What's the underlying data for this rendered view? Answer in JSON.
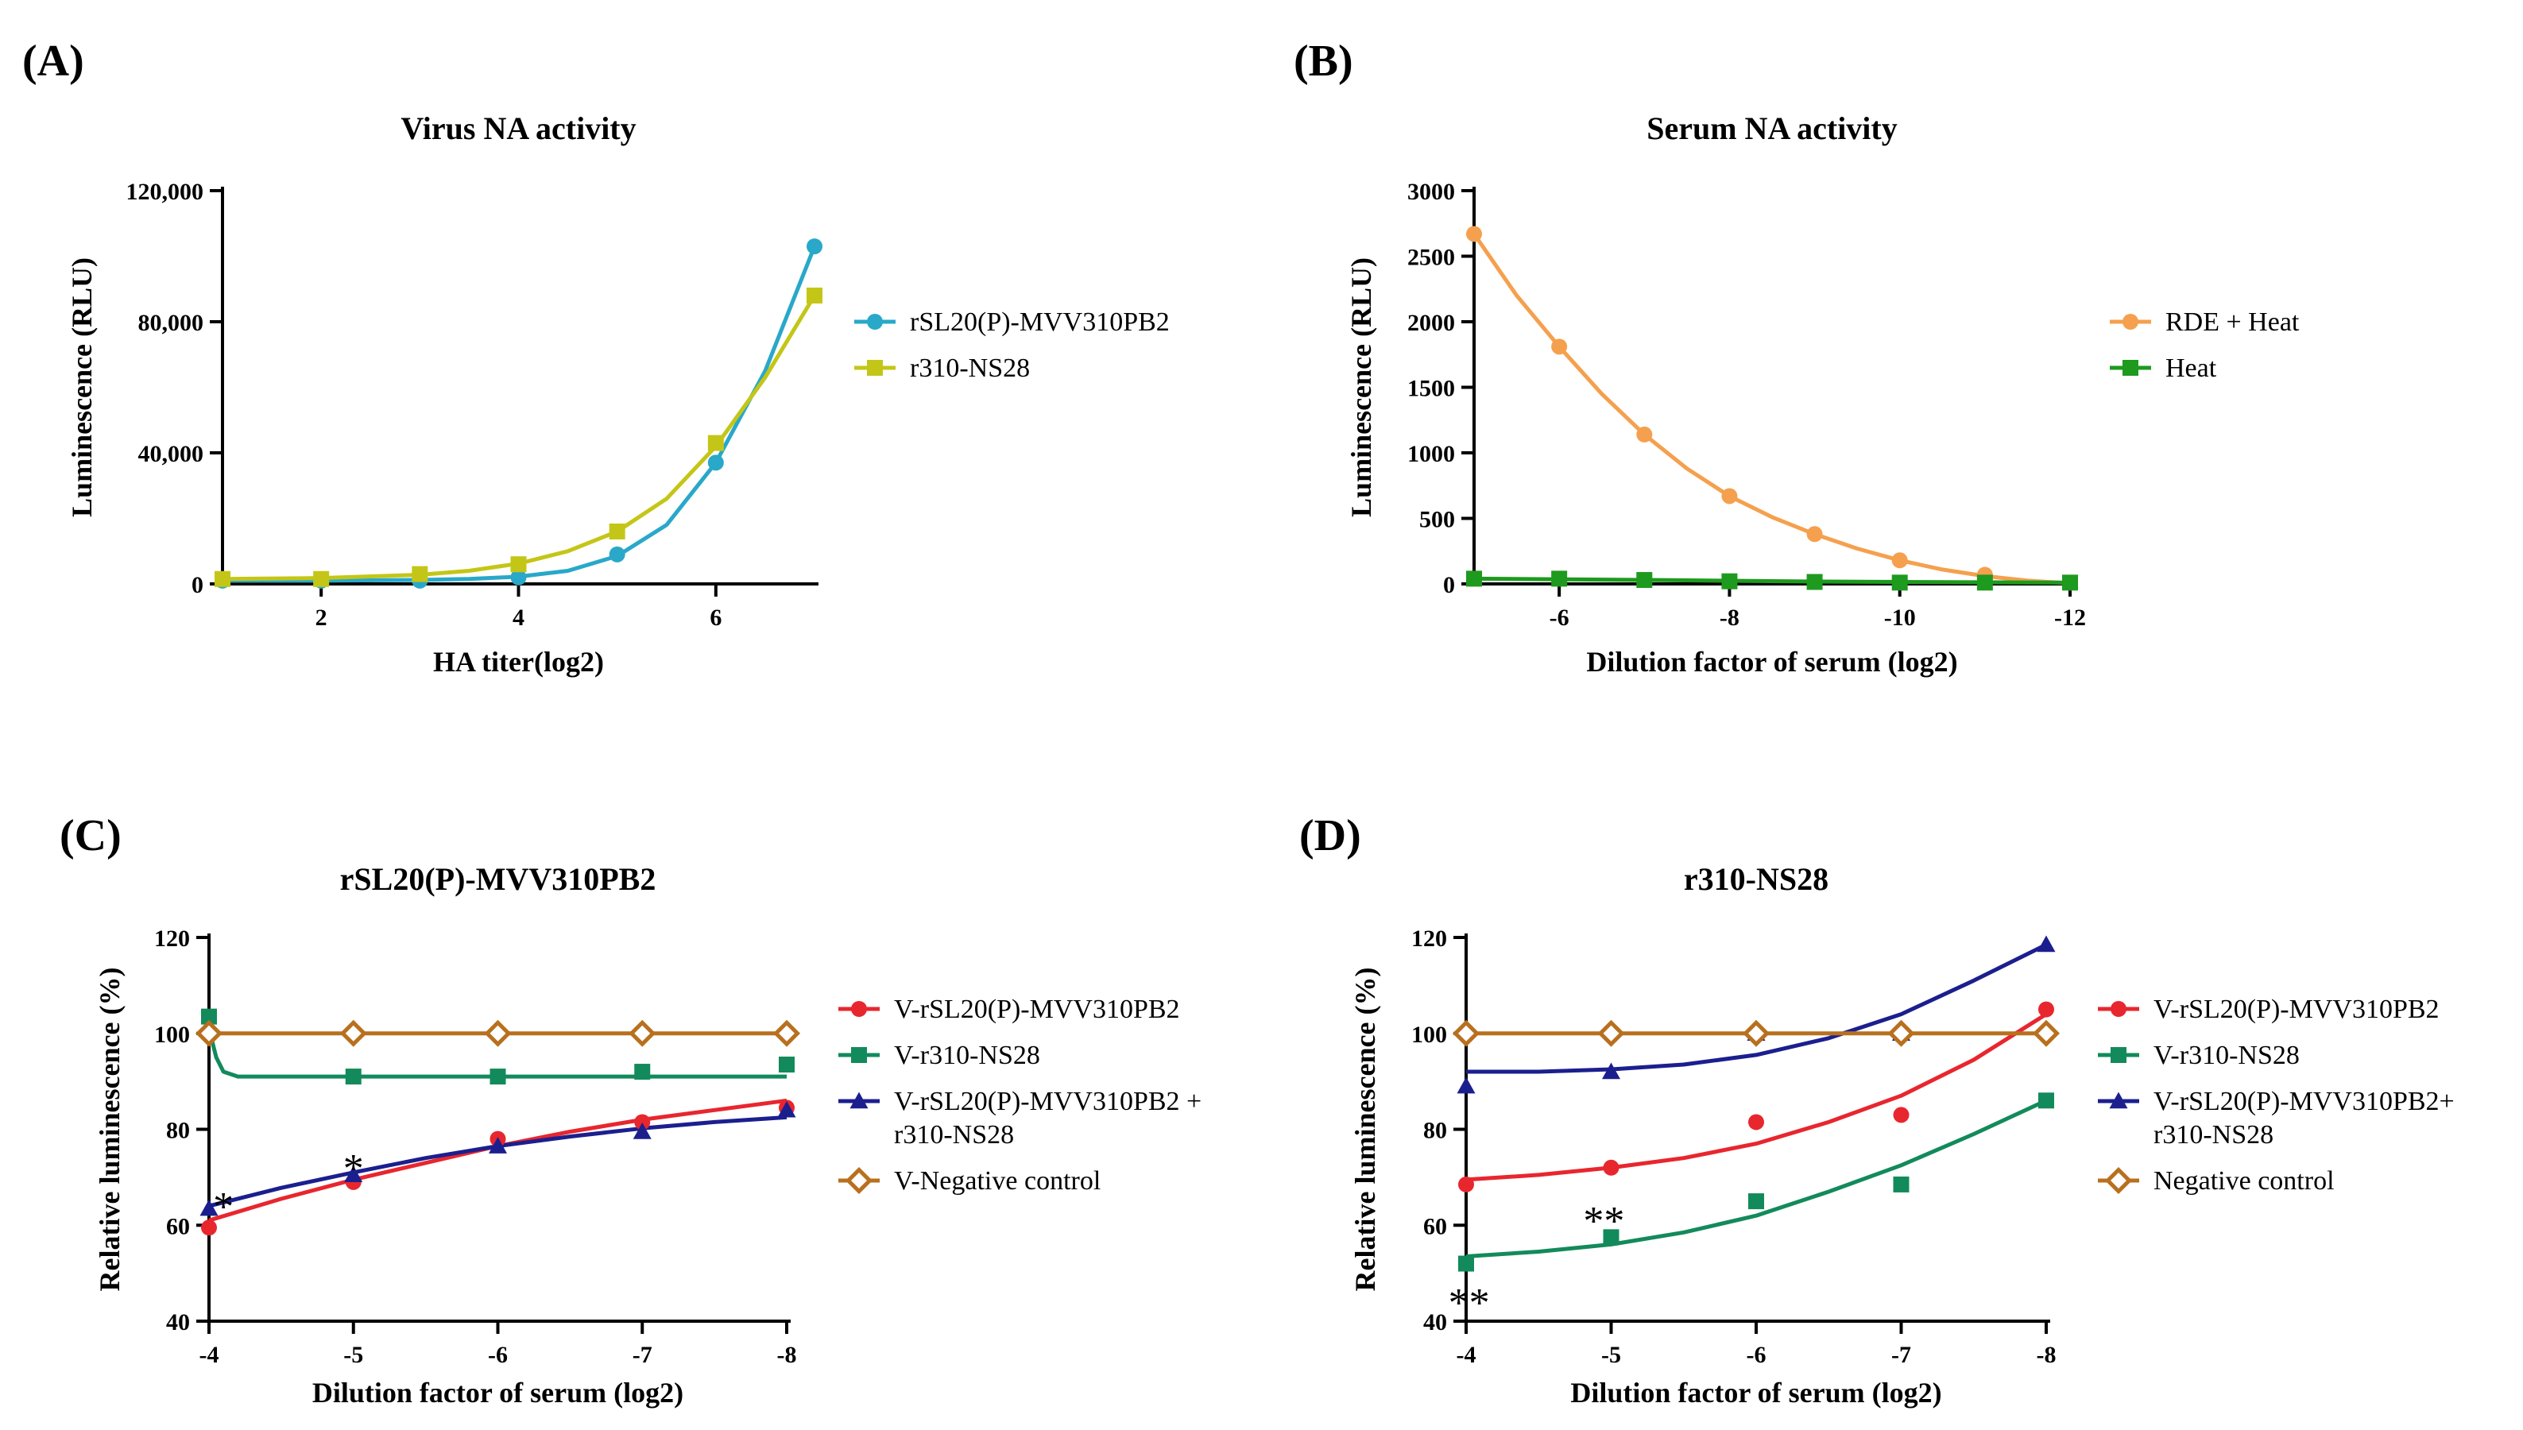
{
  "figure": {
    "panels": [
      "A",
      "B",
      "C",
      "D"
    ]
  },
  "chart_data": [
    {
      "id": "A",
      "type": "line",
      "panel_label": "(A)",
      "title": "Virus  NA activity",
      "xlabel": "HA titer(log2)",
      "ylabel": "Luminescence (RLU)",
      "xlim": [
        1,
        7
      ],
      "ylim": [
        0,
        120000
      ],
      "xticks": [
        2,
        4,
        6
      ],
      "xtick_labels": [
        "2",
        "4",
        "6"
      ],
      "yticks": [
        0,
        40000,
        80000,
        120000
      ],
      "ytick_labels": [
        "0",
        "40,000",
        "80,000",
        "120,000"
      ],
      "legend_position": "right",
      "series": [
        {
          "name": "rSL20(P)-MVV310PB2",
          "color": "#29A8C9",
          "marker": "circle",
          "x": [
            1,
            2,
            3,
            4,
            5,
            6,
            7
          ],
          "y": [
            1000,
            1000,
            1000,
            2000,
            9000,
            37000,
            103000
          ],
          "curve": [
            [
              1,
              1000
            ],
            [
              2,
              1000
            ],
            [
              3,
              1200
            ],
            [
              3.5,
              1500
            ],
            [
              4,
              2200
            ],
            [
              4.5,
              4000
            ],
            [
              5,
              8500
            ],
            [
              5.5,
              18000
            ],
            [
              6,
              37000
            ],
            [
              6.5,
              65000
            ],
            [
              7,
              103000
            ]
          ]
        },
        {
          "name": "r310-NS28",
          "color": "#C4C617",
          "marker": "square",
          "x": [
            1,
            2,
            3,
            4,
            5,
            6,
            7
          ],
          "y": [
            1500,
            1500,
            3000,
            6000,
            16000,
            43000,
            88000
          ],
          "curve": [
            [
              1,
              1500
            ],
            [
              2,
              1800
            ],
            [
              3,
              2800
            ],
            [
              3.5,
              4000
            ],
            [
              4,
              6200
            ],
            [
              4.5,
              10000
            ],
            [
              5,
              16000
            ],
            [
              5.5,
              26000
            ],
            [
              6,
              42000
            ],
            [
              6.5,
              63000
            ],
            [
              7,
              88000
            ]
          ]
        }
      ]
    },
    {
      "id": "B",
      "type": "line",
      "panel_label": "(B)",
      "title": "Serum NA activity",
      "xlabel": "Dilution factor of serum (log2)",
      "ylabel": "Luminescence (RLU)",
      "xlim": [
        -5,
        -12
      ],
      "ylim": [
        0,
        3000
      ],
      "xticks": [
        -6,
        -8,
        -10,
        -12
      ],
      "xtick_labels": [
        "-6",
        "-8",
        "-10",
        "-12"
      ],
      "yticks": [
        0,
        500,
        1000,
        1500,
        2000,
        2500,
        3000
      ],
      "ytick_labels": [
        "0",
        "500",
        "1000",
        "1500",
        "2000",
        "2500",
        "3000"
      ],
      "legend_position": "right",
      "series": [
        {
          "name": "RDE + Heat",
          "color": "#F5A04E",
          "marker": "circle",
          "x": [
            -5,
            -6,
            -7,
            -8,
            -9,
            -10,
            -11,
            -12
          ],
          "y": [
            2670,
            1810,
            1140,
            670,
            380,
            180,
            70,
            10
          ],
          "curve": [
            [
              -5,
              2670
            ],
            [
              -5.5,
              2200
            ],
            [
              -6,
              1810
            ],
            [
              -6.5,
              1450
            ],
            [
              -7,
              1140
            ],
            [
              -7.5,
              880
            ],
            [
              -8,
              670
            ],
            [
              -8.5,
              510
            ],
            [
              -9,
              380
            ],
            [
              -9.5,
              270
            ],
            [
              -10,
              180
            ],
            [
              -10.5,
              110
            ],
            [
              -11,
              60
            ],
            [
              -11.5,
              25
            ],
            [
              -12,
              5
            ]
          ]
        },
        {
          "name": "Heat",
          "color": "#1E9A1E",
          "marker": "square",
          "x": [
            -5,
            -6,
            -7,
            -8,
            -9,
            -10,
            -11,
            -12
          ],
          "y": [
            40,
            40,
            30,
            20,
            15,
            10,
            10,
            10
          ],
          "curve": [
            [
              -5,
              40
            ],
            [
              -7,
              30
            ],
            [
              -9,
              18
            ],
            [
              -12,
              10
            ]
          ]
        }
      ]
    },
    {
      "id": "C",
      "type": "line",
      "panel_label": "(C)",
      "title": "rSL20(P)-MVV310PB2",
      "xlabel": "Dilution factor of serum (log2)",
      "ylabel": "Relative luminescence (%)",
      "xlim": [
        -4,
        -8
      ],
      "ylim": [
        40,
        120
      ],
      "xticks": [
        -4,
        -5,
        -6,
        -7,
        -8
      ],
      "xtick_labels": [
        "-4",
        "-5",
        "-6",
        "-7",
        "-8"
      ],
      "yticks": [
        40,
        60,
        80,
        100,
        120
      ],
      "ytick_labels": [
        "40",
        "60",
        "80",
        "100",
        "120"
      ],
      "legend_position": "right",
      "annotations": [
        {
          "text": "*",
          "x": -4.1,
          "y": 64
        },
        {
          "text": "*",
          "x": -5,
          "y": 72
        }
      ],
      "series": [
        {
          "name": "V-rSL20(P)-MVV310PB2",
          "color": "#E8262E",
          "marker": "circle",
          "x": [
            -4,
            -5,
            -6,
            -7,
            -8
          ],
          "y": [
            59.5,
            69,
            78,
            81.5,
            84.5
          ],
          "curve": [
            [
              -4,
              61
            ],
            [
              -4.5,
              65.5
            ],
            [
              -5,
              69.5
            ],
            [
              -5.5,
              73
            ],
            [
              -6,
              76.5
            ],
            [
              -6.5,
              79.5
            ],
            [
              -7,
              82
            ],
            [
              -7.5,
              84
            ],
            [
              -8,
              86
            ]
          ]
        },
        {
          "name": "V-r310-NS28",
          "color": "#138A5B",
          "marker": "square",
          "x": [
            -4,
            -5,
            -6,
            -7,
            -8
          ],
          "y": [
            103.5,
            91,
            91,
            92,
            93.5
          ],
          "curve": [
            [
              -4,
              101
            ],
            [
              -4.05,
              95
            ],
            [
              -4.1,
              92
            ],
            [
              -4.2,
              91
            ],
            [
              -5,
              91
            ],
            [
              -8,
              91
            ]
          ]
        },
        {
          "name": "V-rSL20(P)-MVV310PB2 + \nr310-NS28",
          "color": "#1B1F8E",
          "marker": "triangle",
          "x": [
            -4,
            -5,
            -6,
            -7,
            -8
          ],
          "y": [
            63.5,
            70.5,
            76.5,
            79.5,
            84
          ],
          "curve": [
            [
              -4,
              64
            ],
            [
              -4.5,
              67.8
            ],
            [
              -5,
              71
            ],
            [
              -5.5,
              74
            ],
            [
              -6,
              76.5
            ],
            [
              -6.5,
              78.5
            ],
            [
              -7,
              80.2
            ],
            [
              -7.5,
              81.5
            ],
            [
              -8,
              82.5
            ]
          ]
        },
        {
          "name": "V-Negative control",
          "color": "#B8701E",
          "marker": "diamond-open",
          "x": [
            -4,
            -5,
            -6,
            -7,
            -8
          ],
          "y": [
            100,
            100,
            100,
            100,
            100
          ],
          "curve": [
            [
              -4,
              100
            ],
            [
              -8,
              100
            ]
          ]
        }
      ]
    },
    {
      "id": "D",
      "type": "line",
      "panel_label": "(D)",
      "title": "r310-NS28",
      "xlabel": "Dilution factor of serum (log2)",
      "ylabel": "Relative luminescence (%)",
      "xlim": [
        -4,
        -8
      ],
      "ylim": [
        40,
        120
      ],
      "xticks": [
        -4,
        -5,
        -6,
        -7,
        -8
      ],
      "xtick_labels": [
        "-4",
        "-5",
        "-6",
        "-7",
        "-8"
      ],
      "yticks": [
        40,
        60,
        80,
        100,
        120
      ],
      "ytick_labels": [
        "40",
        "60",
        "80",
        "100",
        "120"
      ],
      "legend_position": "right",
      "annotations": [
        {
          "text": "**",
          "x": -4.02,
          "y": 44
        },
        {
          "text": "**",
          "x": -4.95,
          "y": 61
        }
      ],
      "series": [
        {
          "name": "V-rSL20(P)-MVV310PB2",
          "color": "#E8262E",
          "marker": "circle",
          "x": [
            -4,
            -5,
            -6,
            -7,
            -8
          ],
          "y": [
            68.5,
            72,
            81.5,
            83,
            105
          ],
          "curve": [
            [
              -4,
              69.5
            ],
            [
              -4.5,
              70.5
            ],
            [
              -5,
              72
            ],
            [
              -5.5,
              74
            ],
            [
              -6,
              77
            ],
            [
              -6.5,
              81.5
            ],
            [
              -7,
              87
            ],
            [
              -7.5,
              94.5
            ],
            [
              -8,
              104
            ]
          ]
        },
        {
          "name": "V-r310-NS28",
          "color": "#138A5B",
          "marker": "square",
          "x": [
            -4,
            -5,
            -6,
            -7,
            -8
          ],
          "y": [
            52,
            57.5,
            65,
            68.5,
            86
          ],
          "curve": [
            [
              -4,
              53.5
            ],
            [
              -4.5,
              54.5
            ],
            [
              -5,
              56
            ],
            [
              -5.5,
              58.5
            ],
            [
              -6,
              62
            ],
            [
              -6.5,
              67
            ],
            [
              -7,
              72.5
            ],
            [
              -7.5,
              79
            ],
            [
              -8,
              86
            ]
          ]
        },
        {
          "name": "V-rSL20(P)-MVV310PB2+\nr310-NS28",
          "color": "#1B1F8E",
          "marker": "triangle",
          "x": [
            -4,
            -5,
            -6,
            -7,
            -8
          ],
          "y": [
            89,
            92,
            100,
            100,
            118.5
          ],
          "curve": [
            [
              -4,
              92
            ],
            [
              -4.5,
              92
            ],
            [
              -5,
              92.5
            ],
            [
              -5.5,
              93.5
            ],
            [
              -6,
              95.5
            ],
            [
              -6.5,
              99
            ],
            [
              -7,
              104
            ],
            [
              -7.5,
              111
            ],
            [
              -8,
              118.5
            ]
          ]
        },
        {
          "name": "Negative control",
          "color": "#B8701E",
          "marker": "diamond-open",
          "x": [
            -4,
            -5,
            -6,
            -7,
            -8
          ],
          "y": [
            100,
            100,
            100,
            100,
            100
          ],
          "curve": [
            [
              -4,
              100
            ],
            [
              -8,
              100
            ]
          ]
        }
      ]
    }
  ]
}
